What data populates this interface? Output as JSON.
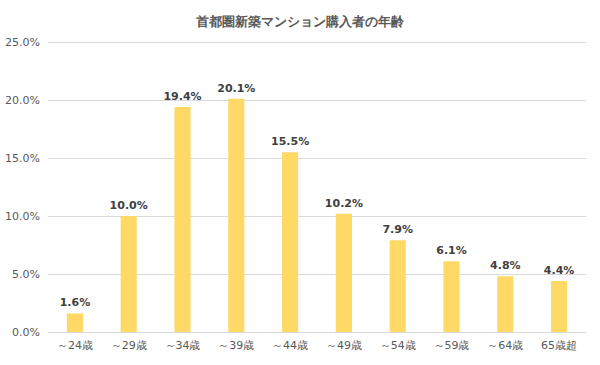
{
  "chart_data": {
    "type": "bar",
    "title": "首都圏新築マンション購入者の年齢",
    "categories": [
      "～24歳",
      "～29歳",
      "～34歳",
      "～39歳",
      "～44歳",
      "～49歳",
      "～54歳",
      "～59歳",
      "～64歳",
      "65歳超"
    ],
    "values": [
      1.6,
      10.0,
      19.4,
      20.1,
      15.5,
      10.2,
      7.9,
      6.1,
      4.8,
      4.4
    ],
    "value_labels": [
      "1.6%",
      "10.0%",
      "19.4%",
      "20.1%",
      "15.5%",
      "10.2%",
      "7.9%",
      "6.1%",
      "4.8%",
      "4.4%"
    ],
    "color": "#ffd966",
    "ylim": [
      0,
      25
    ],
    "yticks": [
      {
        "value": 0,
        "label": "0.0%"
      },
      {
        "value": 5,
        "label": "5.0%"
      },
      {
        "value": 10,
        "label": "10.0%"
      },
      {
        "value": 15,
        "label": "15.0%"
      },
      {
        "value": 20,
        "label": "20.0%"
      },
      {
        "value": 25,
        "label": "25.0%"
      }
    ],
    "grid": true,
    "data_labels": true
  }
}
